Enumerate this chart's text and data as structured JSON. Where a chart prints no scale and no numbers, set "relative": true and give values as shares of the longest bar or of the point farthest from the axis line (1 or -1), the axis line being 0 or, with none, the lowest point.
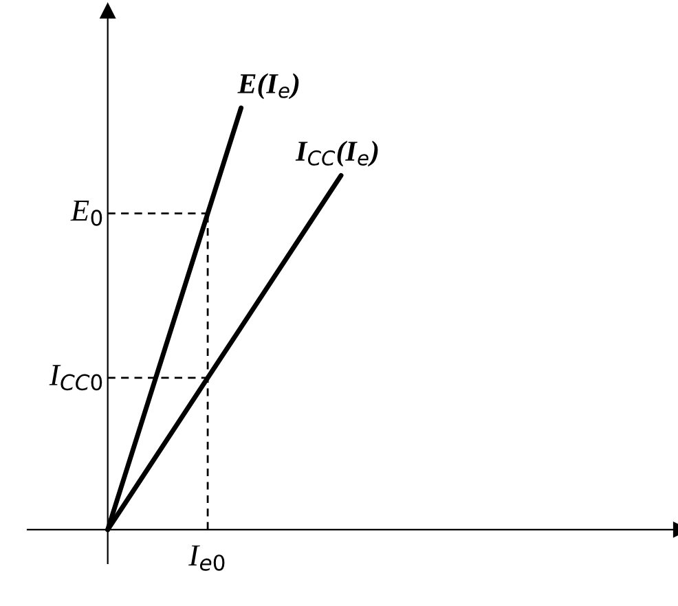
{
  "chart_data": {
    "type": "line",
    "relative": true,
    "line_style": "solid",
    "categories": [
      null,
      null,
      null,
      null,
      null,
      null,
      null,
      null
    ],
    "annotations": [
      "I$_{e0}$"
    ],
    "series": [
      {
        "name": "E(I$_{e}$)",
        "color": "#000000",
        "values": [
          0,
          0.25,
          0.5,
          0.75,
          1,
          null,
          null,
          null
        ]
      },
      {
        "name": "I$_{CC}$(I$_{e}$)",
        "color": "#000000",
        "values": [
          0,
          0.12,
          0.24,
          0.36,
          0.48,
          0.6,
          0.72,
          0.84
        ]
      }
    ],
    "ref_lines": [
      {
        "axis": "y",
        "value": 0.75,
        "label": "E$_{0}$",
        "line_style": "dashed"
      },
      {
        "axis": "y",
        "value": 0.36,
        "label": "I$_{CC0}$",
        "line_style": "dashed"
      }
    ]
  }
}
